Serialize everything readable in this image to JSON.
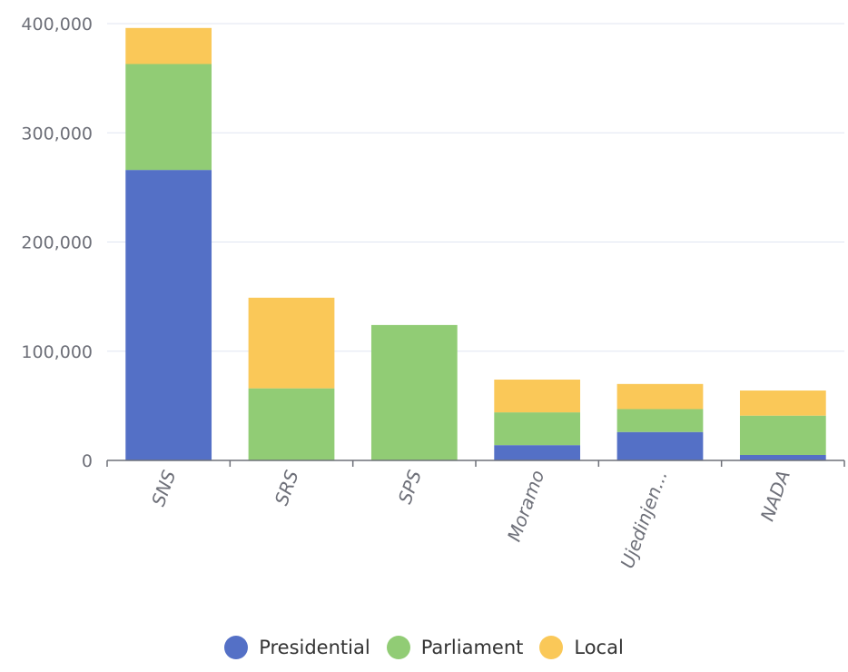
{
  "chart_data": {
    "type": "bar",
    "stacked": true,
    "categories": [
      "SNS",
      "SRS",
      "SPS",
      "Moramo",
      "Ujedinjen...",
      "NADA"
    ],
    "series": [
      {
        "name": "Presidential",
        "color": "#5470c6",
        "values": [
          266000,
          0,
          0,
          14000,
          26000,
          5000
        ]
      },
      {
        "name": "Parliament",
        "color": "#91cc75",
        "values": [
          97000,
          66000,
          124000,
          30000,
          21000,
          36000
        ]
      },
      {
        "name": "Local",
        "color": "#fac858",
        "values": [
          33000,
          83000,
          0,
          30000,
          23000,
          23000
        ]
      }
    ],
    "ylim": [
      0,
      400000
    ],
    "yticks": [
      "0",
      "100,000",
      "200,000",
      "300,000",
      "400,000"
    ],
    "ytick_values": [
      0,
      100000,
      200000,
      300000,
      400000
    ],
    "grid": true,
    "legend_position": "bottom-center"
  }
}
